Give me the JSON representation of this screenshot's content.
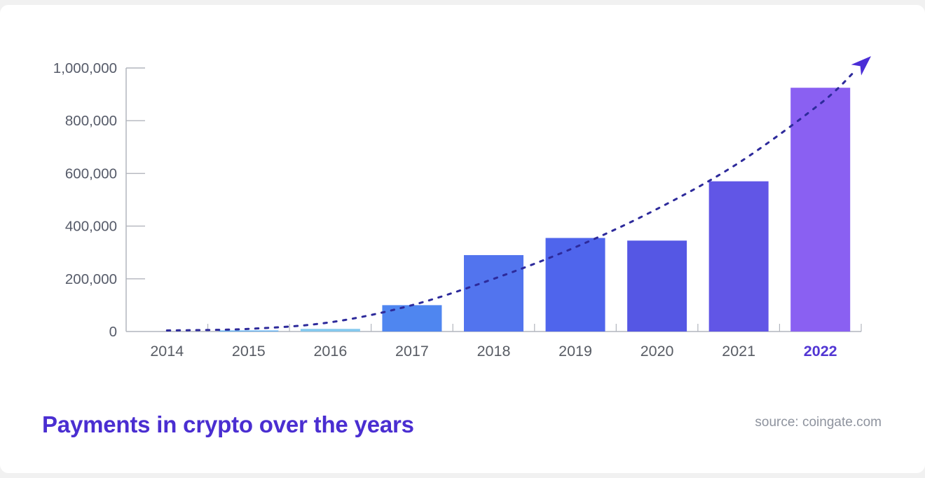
{
  "card": {
    "title": "Payments in crypto over the years",
    "source": "source: coingate.com",
    "title_color": "#4a2ed1",
    "source_color": "#8e939e",
    "background_color": "#ffffff",
    "page_background_color": "#f1f1f1"
  },
  "chart_data": {
    "type": "bar",
    "title": "Payments in crypto over the years",
    "source": "source: coingate.com",
    "categories": [
      "2014",
      "2015",
      "2016",
      "2017",
      "2018",
      "2019",
      "2020",
      "2021",
      "2022"
    ],
    "values": [
      1000,
      4000,
      10000,
      100000,
      290000,
      355000,
      345000,
      570000,
      925000
    ],
    "bar_colors": [
      "#63b2f2",
      "#63b2f2",
      "#85c9ee",
      "#4f86f0",
      "#5274ee",
      "#4f65ec",
      "#5557e4",
      "#6156e6",
      "#8a60f2"
    ],
    "xlabel": "",
    "ylabel": "",
    "ylim": [
      0,
      1000000
    ],
    "ytick_step": 200000,
    "ytick_labels": [
      "0",
      "200,000",
      "400,000",
      "600,000",
      "800,000",
      "1,000,000"
    ],
    "grid": false,
    "legend": "none",
    "axis_color": "#b2b5bd",
    "ytick_label_color": "#565b69",
    "xtick_label_color": "#585c64",
    "highlight_category": "2022",
    "highlight_label_color": "#5236d3",
    "trend": {
      "style": "dashed",
      "color": "#2d2a9b",
      "arrow_color": "#4a2dd6",
      "values_by_year": [
        4000,
        10000,
        35000,
        100000,
        200000,
        320000,
        465000,
        640000,
        865000
      ],
      "arrow_value": 1045000,
      "arrow_x_offset_groups": 0.62
    }
  }
}
